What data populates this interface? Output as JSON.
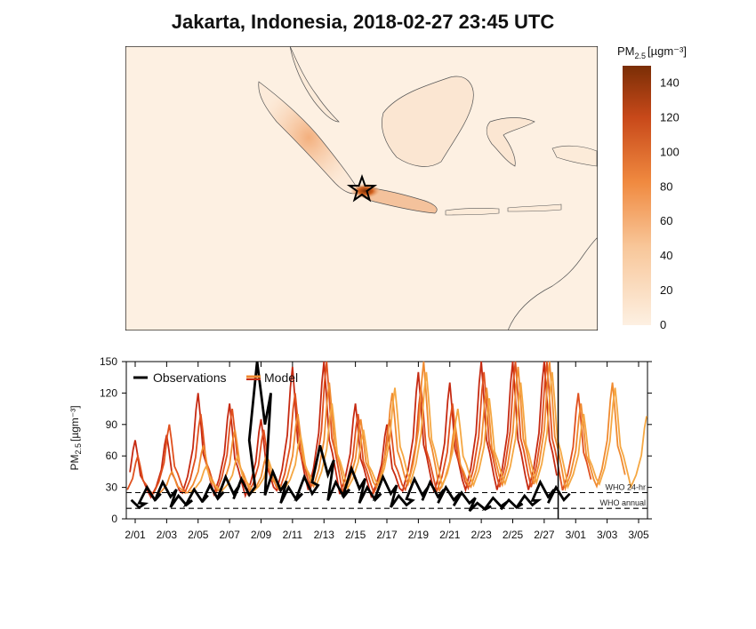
{
  "title": "Jakarta, Indonesia, 2018-02-27 23:45 UTC",
  "colors": {
    "high": "#7a2e06",
    "mid": "#e8661a",
    "low": "#fdf0e2",
    "obs": "#000000"
  },
  "map": {
    "station_marker": "star-icon",
    "colorbar": {
      "label": "PM",
      "label_sub": "2.5",
      "unit": "[µgm⁻³]",
      "range": [
        0,
        150
      ],
      "ticks": [
        0,
        20,
        40,
        60,
        80,
        100,
        120,
        140
      ]
    }
  },
  "chart_data": {
    "type": "line",
    "ylabel": "PM2.5 [µgm⁻³]",
    "ylabel_main": "PM",
    "ylabel_sub": "2.5",
    "ylabel_unit": "[µgm⁻³]",
    "ylim": [
      0,
      150
    ],
    "yticks": [
      0,
      30,
      60,
      90,
      120,
      150
    ],
    "xticks": [
      "2/01",
      "2/03",
      "2/05",
      "2/07",
      "2/09",
      "2/11",
      "2/13",
      "2/15",
      "2/17",
      "2/19",
      "2/21",
      "2/23",
      "2/25",
      "2/27",
      "3/01",
      "3/03",
      "3/05"
    ],
    "legend": {
      "placement": "top-left",
      "entries": [
        "Observations",
        "Model"
      ]
    },
    "reference_lines": [
      {
        "label": "WHO 24-hr",
        "value": 25
      },
      {
        "label": "WHO annual",
        "value": 10
      }
    ],
    "observations": {
      "name": "Observations",
      "dates": [
        "2/01",
        "2/02",
        "2/03",
        "2/04",
        "2/05",
        "2/06",
        "2/07",
        "2/08",
        "2/09",
        "2/10",
        "2/11",
        "2/12",
        "2/13",
        "2/14",
        "2/15",
        "2/16",
        "2/17",
        "2/18",
        "2/19",
        "2/20",
        "2/21",
        "2/22",
        "2/23",
        "2/24",
        "2/25",
        "2/26",
        "2/27",
        "2/28"
      ],
      "values": [
        18,
        30,
        35,
        22,
        28,
        32,
        40,
        38,
        150,
        45,
        30,
        40,
        70,
        35,
        48,
        30,
        40,
        22,
        38,
        35,
        30,
        25,
        15,
        20,
        18,
        22,
        35,
        30
      ]
    },
    "model_runs": [
      {
        "color": "#c62a12",
        "dates": [
          "2/01",
          "2/03",
          "2/05",
          "2/07",
          "2/09",
          "2/11",
          "2/13",
          "2/15",
          "2/17",
          "2/19",
          "2/21",
          "2/23",
          "2/25",
          "2/27"
        ],
        "peaks": [
          75,
          80,
          120,
          110,
          95,
          145,
          150,
          110,
          90,
          140,
          130,
          150,
          150,
          150
        ]
      },
      {
        "color": "#e0501e",
        "dates": [
          "2/01",
          "2/03",
          "2/05",
          "2/07",
          "2/09",
          "2/11",
          "2/13",
          "2/15",
          "2/17",
          "2/19",
          "2/21",
          "2/23",
          "2/25",
          "2/27",
          "3/01"
        ],
        "peaks": [
          60,
          90,
          100,
          105,
          85,
          120,
          150,
          100,
          95,
          125,
          110,
          140,
          150,
          150,
          120
        ]
      },
      {
        "color": "#f08a30",
        "dates": [
          "2/03",
          "2/05",
          "2/07",
          "2/09",
          "2/11",
          "2/13",
          "2/15",
          "2/17",
          "2/19",
          "2/21",
          "2/23",
          "2/25",
          "2/27",
          "3/01",
          "3/03"
        ],
        "peaks": [
          45,
          70,
          85,
          60,
          100,
          130,
          95,
          120,
          150,
          90,
          125,
          145,
          150,
          110,
          130
        ]
      },
      {
        "color": "#f5a742",
        "dates": [
          "2/05",
          "2/07",
          "2/09",
          "2/11",
          "2/13",
          "2/15",
          "2/17",
          "2/19",
          "2/21",
          "2/23",
          "2/25",
          "2/27",
          "3/01",
          "3/03",
          "3/05"
        ],
        "peaks": [
          50,
          60,
          55,
          80,
          110,
          85,
          125,
          140,
          105,
          115,
          130,
          140,
          100,
          125,
          98
        ]
      }
    ]
  }
}
